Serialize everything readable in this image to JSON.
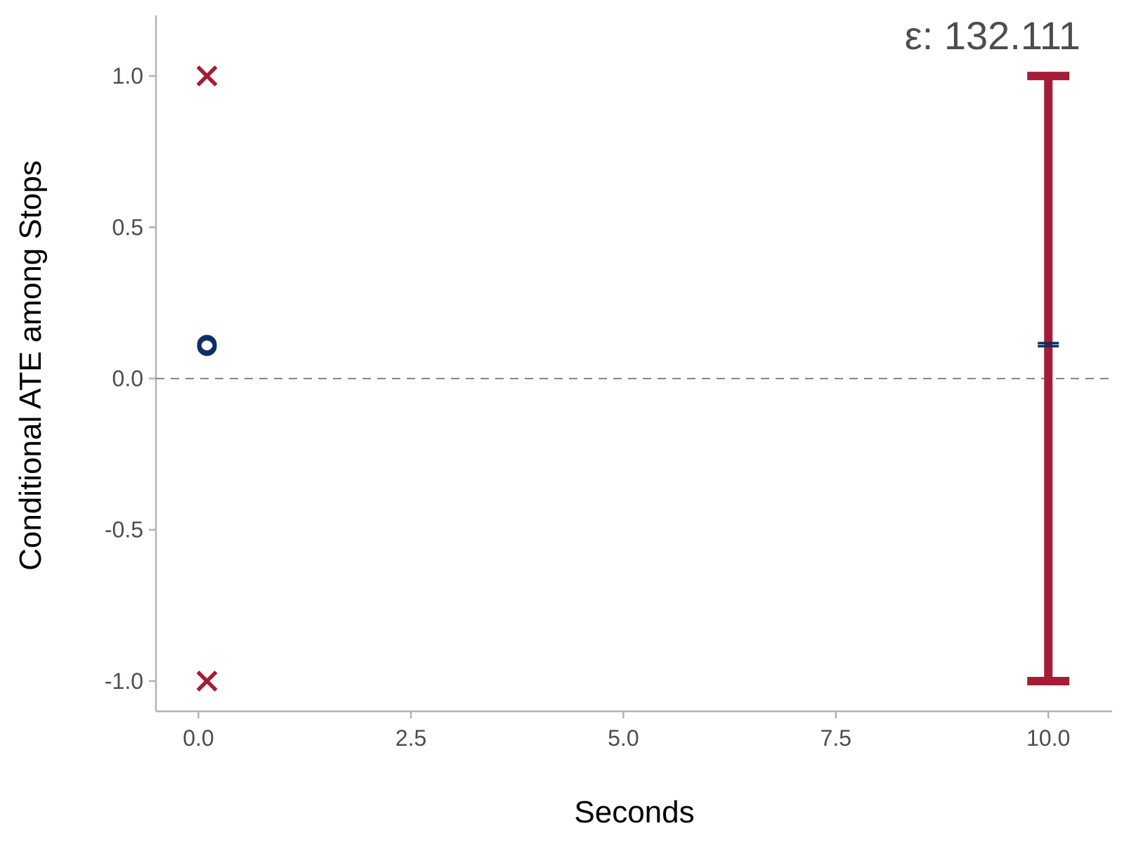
{
  "chart_data": {
    "type": "scatter",
    "title": "",
    "xlabel": "Seconds",
    "ylabel": "Conditional ATE among Stops",
    "annotation": "ε: 132.111",
    "xlim": [
      -0.5,
      10.75
    ],
    "ylim": [
      -1.1,
      1.2
    ],
    "x_ticks": [
      0.0,
      2.5,
      5.0,
      7.5,
      10.0
    ],
    "x_tick_labels": [
      "0.0",
      "2.5",
      "5.0",
      "7.5",
      "10.0"
    ],
    "y_ticks": [
      -1.0,
      -0.5,
      0.0,
      0.5,
      1.0
    ],
    "y_tick_labels": [
      "-1.0",
      "-0.5",
      "0.0",
      "0.5",
      "1.0"
    ],
    "reference_line": {
      "y": 0.0,
      "style": "dashed",
      "color": "#666666"
    },
    "grid": false,
    "legend": "none",
    "series": [
      {
        "kind": "bound-markers",
        "color": "#A51C36",
        "marker": "x",
        "points": [
          {
            "x": 0.1,
            "y": 1.0
          },
          {
            "x": 0.1,
            "y": -1.0
          }
        ]
      },
      {
        "kind": "estimates",
        "color": "#0E2F63",
        "marker": "open-circle",
        "points": [
          {
            "x": 0.1,
            "y": 0.112
          },
          {
            "x": 0.1,
            "y": 0.107
          }
        ]
      },
      {
        "kind": "bound-interval",
        "color": "#A51C36",
        "x": 10.0,
        "low": -1.0,
        "high": 1.0
      },
      {
        "kind": "estimate-interval",
        "color": "#0E2F63",
        "x": 10.0,
        "low": 0.107,
        "high": 0.117
      }
    ],
    "colors": {
      "axis": "#b3b3b3",
      "tick_text": "#4d4d4d",
      "title_text": "#000000",
      "bound": "#A51C36",
      "estimate": "#0E2F63"
    }
  }
}
